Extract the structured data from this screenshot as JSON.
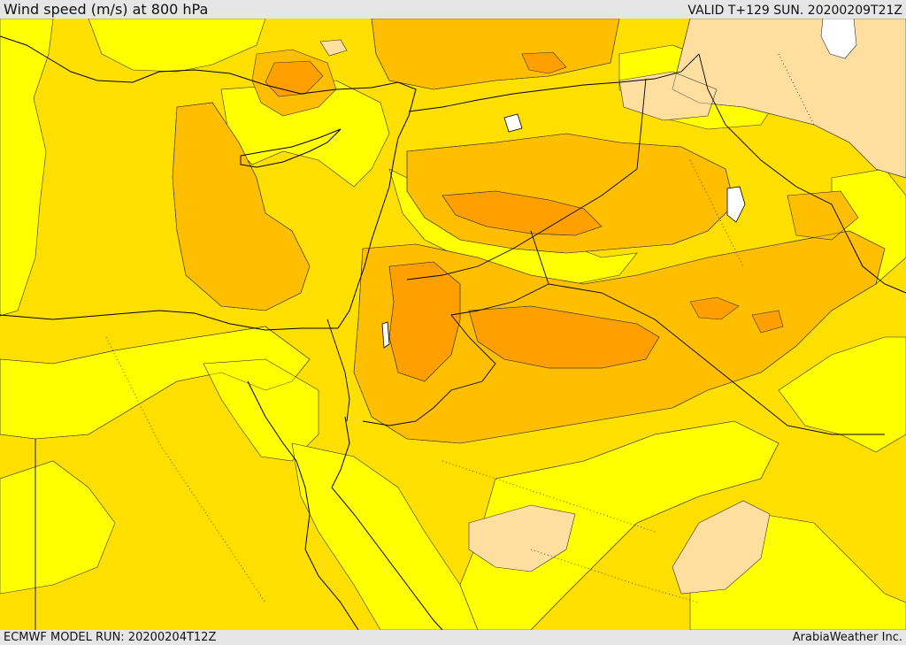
{
  "header": {
    "title": "Wind speed (m/s) at 800 hPa",
    "valid": "VALID T+129 SUN. 20200209T21Z"
  },
  "footer": {
    "model_run": "ECMWF MODEL RUN: 20200204T12Z",
    "credit": "ArabiaWeather Inc."
  },
  "palette": {
    "band_light_yellow": "#ffff00",
    "band_yellow": "#ffdf00",
    "band_light_orange": "#ffbf00",
    "band_orange": "#ff9f00",
    "band_peach": "#ffdfa0",
    "band_white": "#ffffff",
    "contour_line": "#333333",
    "coast_line": "#000000"
  },
  "map": {
    "parameter": "wind speed",
    "level": "800 hPa",
    "units": "m/s"
  }
}
